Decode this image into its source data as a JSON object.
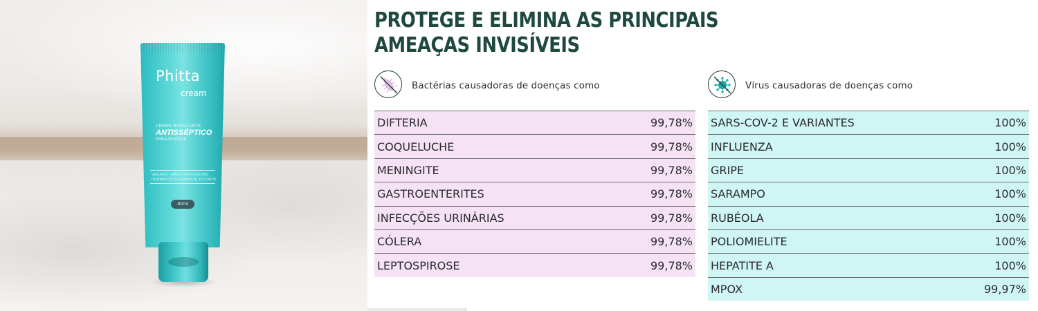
{
  "product": {
    "brand": "Phitta",
    "brand_sub": "cream",
    "line1": "CREME HIDRATANTE",
    "line2": "ANTISSÉPTICO",
    "line3": "PARA AS MÃOS",
    "tags1": "VEGANO · MÃOS PROTEGIDAS",
    "tags2": "DERMATOLOGICAMENTE TESTADO",
    "volume": "80ml"
  },
  "heading": {
    "line1": "PROTEGE E ELIMINA AS PRINCIPAIS",
    "line2": "AMEAÇAS INVISÍVEIS"
  },
  "colors": {
    "heading": "#1f4940",
    "bacteria_bg": "#f5e3f5",
    "virus_bg": "#cff6f5",
    "tube": "#3ec9cb"
  },
  "bacteria": {
    "icon": "bacteria-crossed-icon",
    "label": "Bactérias causadoras de doenças como",
    "rows": [
      {
        "name": "DIFTERIA",
        "value": "99,78%"
      },
      {
        "name": "COQUELUCHE",
        "value": "99,78%"
      },
      {
        "name": "MENINGITE",
        "value": "99,78%"
      },
      {
        "name": "GASTROENTERITES",
        "value": "99,78%"
      },
      {
        "name": "INFECÇÕES URINÁRIAS",
        "value": "99,78%"
      },
      {
        "name": "CÓLERA",
        "value": "99,78%"
      },
      {
        "name": "LEPTOSPIROSE",
        "value": "99,78%"
      }
    ]
  },
  "virus": {
    "icon": "virus-crossed-icon",
    "label": "Vírus causadoras de doenças como",
    "rows": [
      {
        "name": "SARS-COV-2 E VARIANTES",
        "value": "100%"
      },
      {
        "name": "INFLUENZA",
        "value": "100%"
      },
      {
        "name": "GRIPE",
        "value": "100%"
      },
      {
        "name": "SARAMPO",
        "value": "100%"
      },
      {
        "name": "RUBÉOLA",
        "value": "100%"
      },
      {
        "name": "POLIOMIELITE",
        "value": "100%"
      },
      {
        "name": "HEPATITE A",
        "value": "100%"
      },
      {
        "name": "MPOX",
        "value": "99,97%"
      }
    ]
  }
}
